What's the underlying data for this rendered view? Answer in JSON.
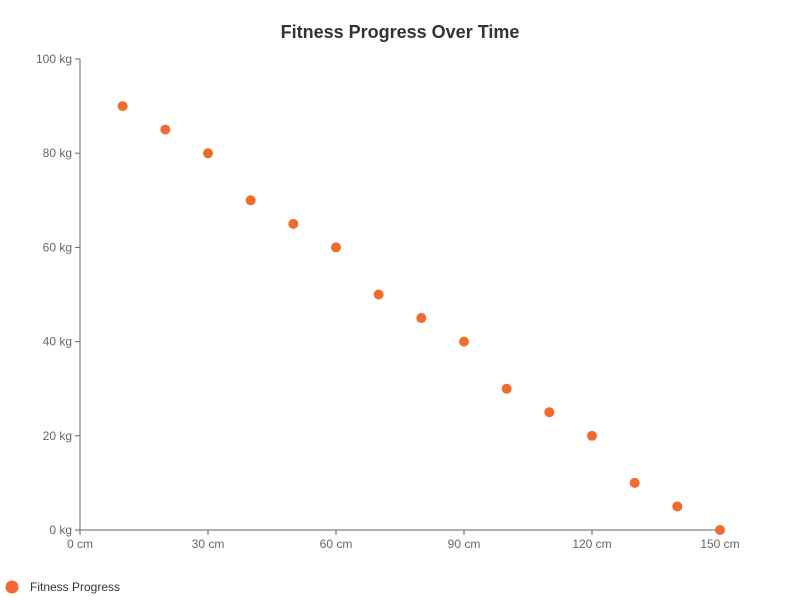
{
  "chart_data": {
    "type": "scatter",
    "title": "Fitness Progress Over Time",
    "xlabel": "",
    "ylabel": "",
    "xlim": [
      0,
      150
    ],
    "ylim": [
      0,
      100
    ],
    "x_ticks": [
      "0 cm",
      "30 cm",
      "60 cm",
      "90 cm",
      "120 cm",
      "150 cm"
    ],
    "x_tick_values": [
      0,
      30,
      60,
      90,
      120,
      150
    ],
    "y_ticks": [
      "0 kg",
      "20 kg",
      "40 kg",
      "60 kg",
      "80 kg",
      "100 kg"
    ],
    "y_tick_values": [
      0,
      20,
      40,
      60,
      80,
      100
    ],
    "grid": false,
    "legend_position": "bottom-left",
    "series": [
      {
        "name": "Fitness Progress",
        "color": "#f26a30",
        "points": [
          {
            "x": 10,
            "y": 90
          },
          {
            "x": 20,
            "y": 85
          },
          {
            "x": 30,
            "y": 80
          },
          {
            "x": 40,
            "y": 70
          },
          {
            "x": 50,
            "y": 65
          },
          {
            "x": 60,
            "y": 60
          },
          {
            "x": 70,
            "y": 50
          },
          {
            "x": 80,
            "y": 45
          },
          {
            "x": 90,
            "y": 40
          },
          {
            "x": 100,
            "y": 30
          },
          {
            "x": 110,
            "y": 25
          },
          {
            "x": 120,
            "y": 20
          },
          {
            "x": 130,
            "y": 10
          },
          {
            "x": 140,
            "y": 5
          },
          {
            "x": 150,
            "y": 0
          }
        ]
      }
    ]
  }
}
